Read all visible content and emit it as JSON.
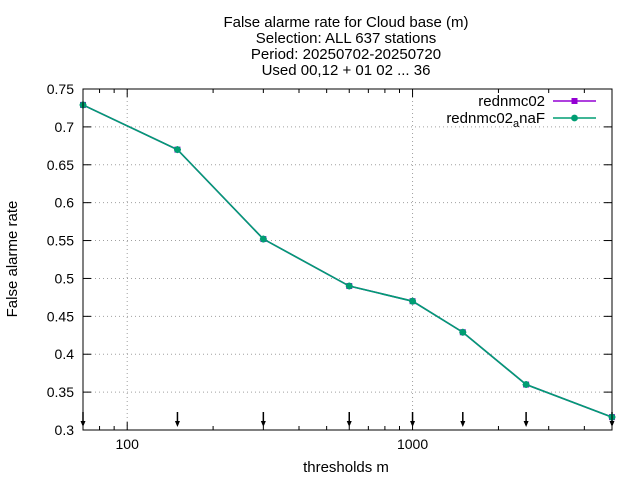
{
  "chart_data": {
    "type": "line",
    "title_lines": [
      "False alarme rate  for Cloud base (m)",
      "Selection: ALL    637 stations",
      "Period: 20250702-20250720",
      "Used 00,12 + 01 02 ... 36"
    ],
    "xlabel": "thresholds m",
    "ylabel": "False alarme rate",
    "xscale": "log",
    "xlim": [
      70,
      5000
    ],
    "ylim": [
      0.3,
      0.75
    ],
    "x_ticks": [
      100,
      1000
    ],
    "x_tick_labels": [
      "100",
      "1000"
    ],
    "y_ticks": [
      0.3,
      0.35,
      0.4,
      0.45,
      0.5,
      0.55,
      0.6,
      0.65,
      0.7,
      0.75
    ],
    "y_tick_labels": [
      "0.3",
      "0.35",
      "0.4",
      "0.45",
      "0.5",
      "0.55",
      "0.6",
      "0.65",
      "0.7",
      "0.75"
    ],
    "grid": true,
    "legend_position": "top-right",
    "x": [
      70,
      150,
      300,
      600,
      1000,
      1500,
      2500,
      5000
    ],
    "series": [
      {
        "name": "rednmc02",
        "legend_base": "rednmc02",
        "legend_sub": "",
        "legend_tail": "",
        "color": "#9400d3",
        "marker": "filled-square",
        "values": [
          0.729,
          0.67,
          0.552,
          0.49,
          0.47,
          0.429,
          0.36,
          0.317
        ]
      },
      {
        "name": "rednmc02_anaF",
        "legend_base": "rednmc02",
        "legend_sub": "a",
        "legend_tail": "naF",
        "color": "#009e73",
        "marker": "filled-circle",
        "values": [
          0.729,
          0.67,
          0.552,
          0.49,
          0.47,
          0.429,
          0.36,
          0.317
        ]
      }
    ],
    "threshold_arrows": [
      70,
      150,
      300,
      600,
      1000,
      1500,
      2500,
      5000
    ]
  }
}
